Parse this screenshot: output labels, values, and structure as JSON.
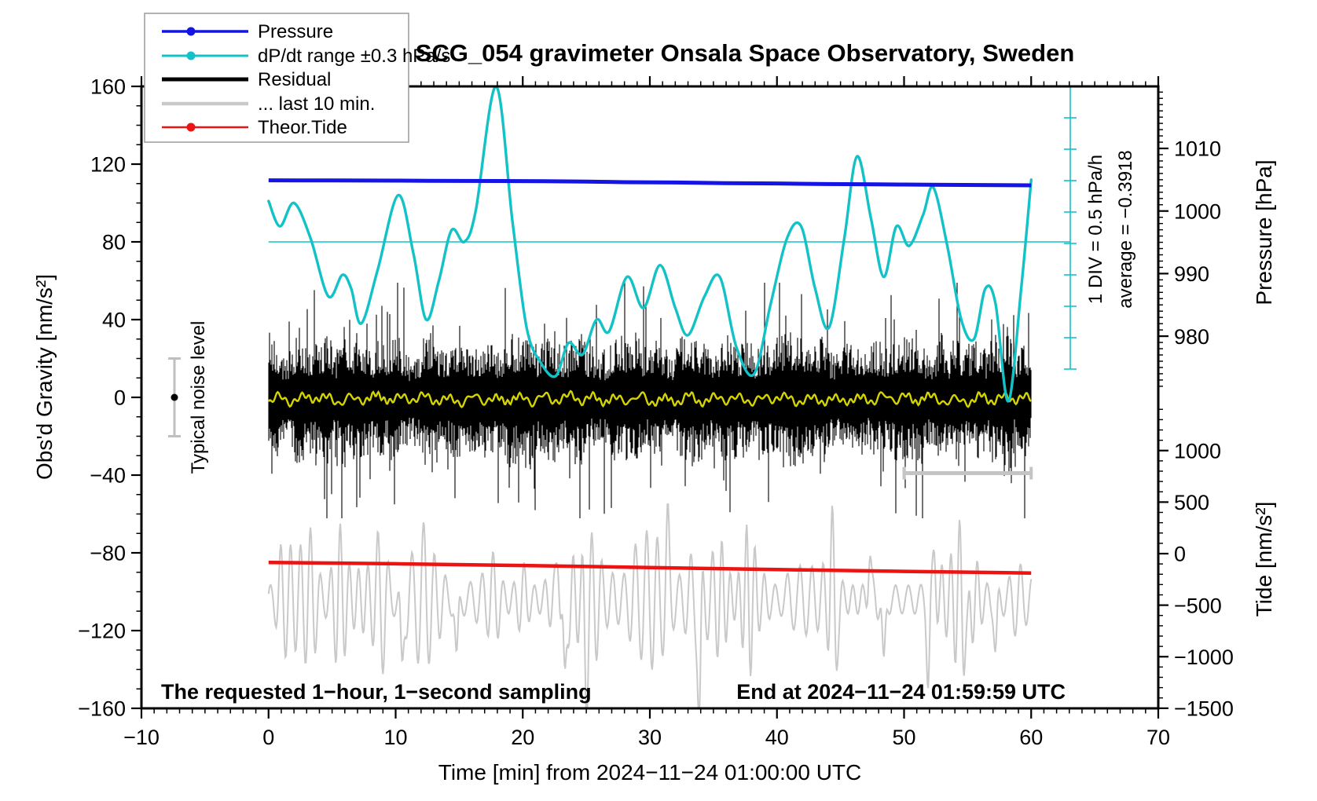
{
  "chart_data": {
    "type": "line",
    "title": "SCG_054 gravimeter Onsala Space Observatory, Sweden",
    "x_axis": {
      "label": "Time [min] from 2024−11−24 01:00:00 UTC",
      "range": [
        -10,
        70
      ],
      "major_tick_step": 10,
      "minor_tick_step": 1,
      "major_ticks": [
        -10,
        0,
        10,
        20,
        30,
        40,
        50,
        60,
        70
      ]
    },
    "y_axis_left": {
      "label": "Obs'd Gravity [nm/s²]",
      "range": [
        -160,
        160
      ],
      "major_tick_step": 40,
      "minor_tick_step": 10,
      "major_ticks": [
        -160,
        -120,
        -80,
        -40,
        0,
        40,
        80,
        120,
        160
      ]
    },
    "y_axis_pressure": {
      "label": "Pressure [hPa]",
      "tick_values": [
        1010,
        1000,
        990,
        980
      ],
      "minor_tick_step": 1
    },
    "y_axis_tide": {
      "label": "Tide [nm/s²]",
      "tick_values": [
        1000,
        500,
        0,
        -500,
        -1000,
        -1500
      ],
      "minor_tick_step": 100
    },
    "legend": [
      {
        "label": "Pressure",
        "color": "#1414e6",
        "style": "line-dot"
      },
      {
        "label": "dP/dt range ±0.3 hPa/s",
        "color": "#12c2c6",
        "style": "line-dot"
      },
      {
        "label": "Residual",
        "color": "#000000",
        "style": "thick-line"
      },
      {
        "label": "... last 10 min.",
        "color": "#c9c9c9",
        "style": "thick-line"
      },
      {
        "label": "Theor.Tide",
        "color": "#ec1313",
        "style": "line-dot"
      }
    ],
    "annotations": {
      "noise_level_label": "Typical noise level",
      "noise_bar": {
        "center_gravity": 0,
        "half_span_gravity": 20
      },
      "div_scale_label": "1 DIV = 0.5 hPa/h",
      "average_label": "average = −0.3918",
      "sampling_label": "The requested 1−hour, 1−second sampling",
      "end_label": "End at 2024−11−24 01:59:59 UTC",
      "last10_marker": {
        "from_min": 50,
        "to_min": 60,
        "at_gravity": -39
      }
    },
    "series": {
      "pressure_hpa": {
        "name": "Pressure",
        "color": "#1414e6",
        "points": [
          [
            0,
            1004.9
          ],
          [
            5,
            1004.88
          ],
          [
            10,
            1004.85
          ],
          [
            15,
            1004.8
          ],
          [
            20,
            1004.78
          ],
          [
            25,
            1004.7
          ],
          [
            28,
            1004.6
          ],
          [
            32,
            1004.55
          ],
          [
            36,
            1004.45
          ],
          [
            40,
            1004.4
          ],
          [
            44,
            1004.3
          ],
          [
            48,
            1004.25
          ],
          [
            52,
            1004.2
          ],
          [
            56,
            1004.15
          ],
          [
            60,
            1004.1
          ]
        ]
      },
      "dpdt": {
        "name": "dP/dt range ±0.3 hPa/s",
        "color": "#12c2c6",
        "baseline_gravity": 80,
        "scale_note": "1 DIV = 0.5 hPa/h",
        "average_hpa_per_h": -0.3918,
        "points_gravity_units": [
          [
            0,
            101
          ],
          [
            0.9,
            88
          ],
          [
            2,
            100
          ],
          [
            3.3,
            82
          ],
          [
            4.7,
            52
          ],
          [
            5.8,
            63
          ],
          [
            6.5,
            56
          ],
          [
            7.3,
            38
          ],
          [
            8.6,
            66
          ],
          [
            10.2,
            104
          ],
          [
            11.4,
            74
          ],
          [
            12.4,
            40
          ],
          [
            13.4,
            60
          ],
          [
            14.4,
            86
          ],
          [
            15.4,
            80
          ],
          [
            16.3,
            96
          ],
          [
            17.9,
            160
          ],
          [
            19.2,
            90
          ],
          [
            20.3,
            36
          ],
          [
            21.4,
            18
          ],
          [
            22.6,
            11
          ],
          [
            23.6,
            28
          ],
          [
            24.7,
            22
          ],
          [
            25.8,
            40
          ],
          [
            26.8,
            34
          ],
          [
            28.2,
            62
          ],
          [
            29.5,
            46
          ],
          [
            30.8,
            68
          ],
          [
            32,
            46
          ],
          [
            33,
            32
          ],
          [
            34.3,
            52
          ],
          [
            35.5,
            62
          ],
          [
            36.8,
            26
          ],
          [
            38.2,
            12
          ],
          [
            39.5,
            48
          ],
          [
            40.8,
            82
          ],
          [
            41.9,
            88
          ],
          [
            43,
            56
          ],
          [
            44.1,
            36
          ],
          [
            45.3,
            82
          ],
          [
            46.3,
            124
          ],
          [
            47.4,
            92
          ],
          [
            48.4,
            62
          ],
          [
            49.4,
            88
          ],
          [
            50.4,
            78
          ],
          [
            51.5,
            94
          ],
          [
            52.3,
            108
          ],
          [
            53.4,
            78
          ],
          [
            54.5,
            40
          ],
          [
            55.5,
            30
          ],
          [
            56.4,
            56
          ],
          [
            57.2,
            48
          ],
          [
            58.2,
            -2
          ],
          [
            59.2,
            55
          ],
          [
            60,
            112
          ]
        ]
      },
      "residual": {
        "name": "Residual",
        "color": "#000000",
        "center_gravity": 0,
        "typical_amplitude_gravity": 22,
        "peak_amplitude_gravity": 60,
        "smoothed_line_color": "#d4d400"
      },
      "last_10_min": {
        "name": "... last 10 min.",
        "color": "#c9c9c9",
        "offset_gravity": -104,
        "typical_amplitude_gravity": 35,
        "spikes_min_units": [
          [
            10.5,
            -38
          ],
          [
            14.8,
            -34
          ],
          [
            23.3,
            -57
          ],
          [
            25,
            -36
          ],
          [
            33.9,
            -61
          ],
          [
            44.6,
            -28
          ],
          [
            48.4,
            -38
          ],
          [
            51.9,
            -38
          ],
          [
            55,
            -32
          ],
          [
            57.2,
            -28
          ],
          [
            22.8,
            24
          ],
          [
            31.4,
            26
          ],
          [
            44.3,
            24
          ],
          [
            47.3,
            24
          ],
          [
            52.4,
            22
          ]
        ]
      },
      "theor_tide": {
        "name": "Theor.Tide",
        "color": "#ec1313",
        "points_tide_units": [
          [
            0,
            -85
          ],
          [
            10,
            -98
          ],
          [
            20,
            -115
          ],
          [
            30,
            -135
          ],
          [
            40,
            -155
          ],
          [
            50,
            -172
          ],
          [
            60,
            -188
          ]
        ]
      }
    }
  }
}
